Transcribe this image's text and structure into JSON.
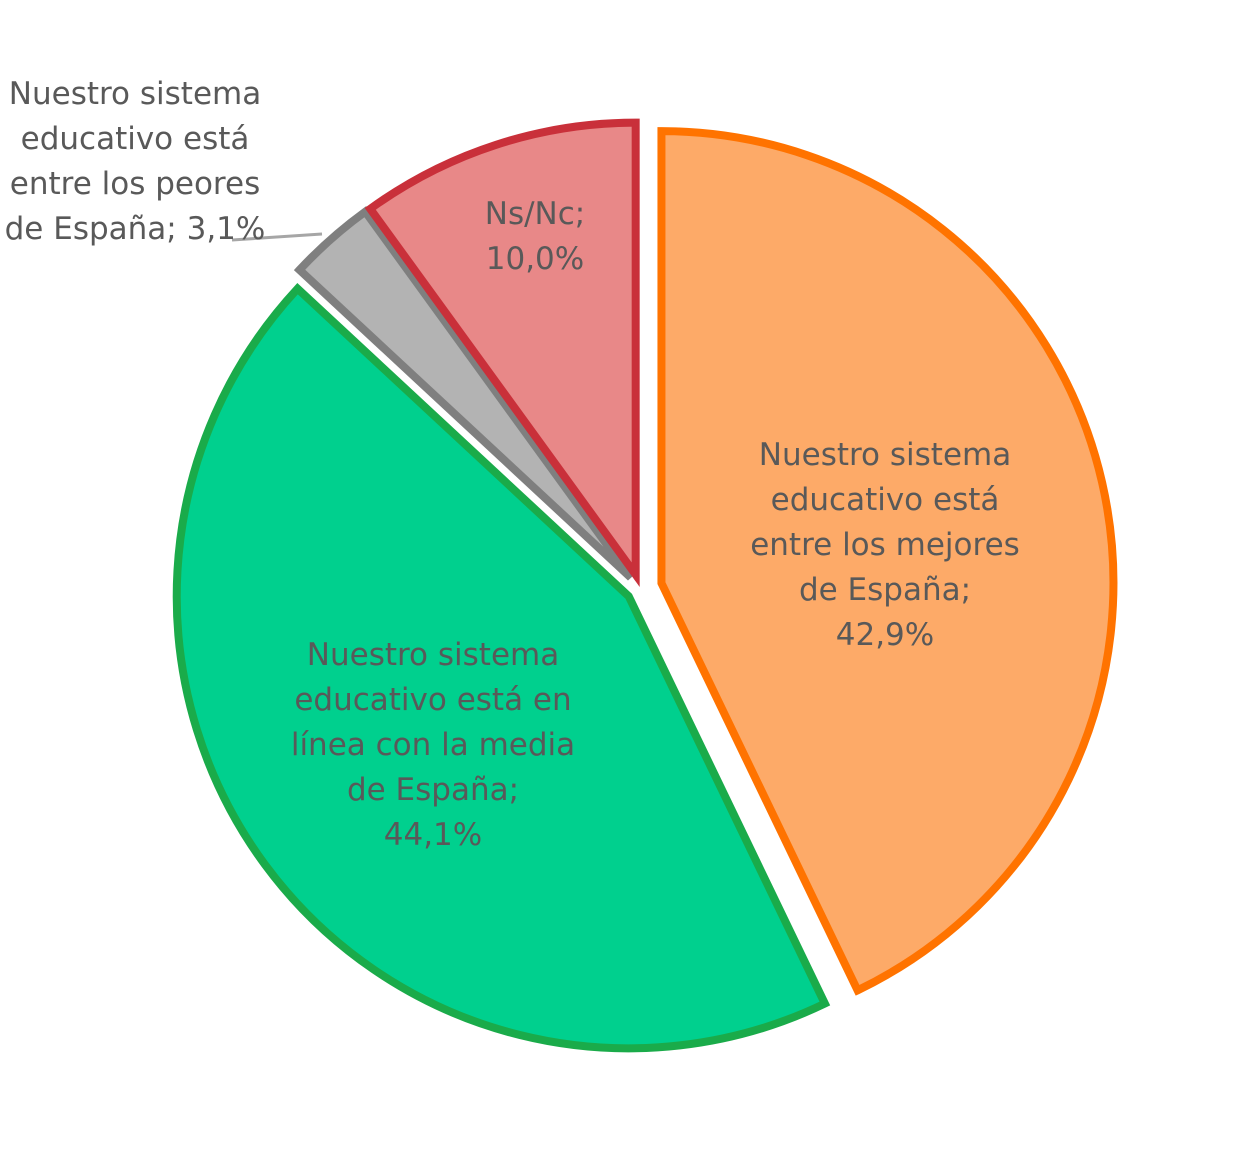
{
  "chart_data": {
    "type": "pie",
    "categories": [
      "Nuestro sistema educativo está entre los mejores de España;",
      "Nuestro sistema educativo está en línea con la media de España;",
      "Nuestro sistema educativo está entre los peores de España;",
      "Ns/Nc;"
    ],
    "values": [
      42.9,
      44.1,
      3.1,
      10.0
    ],
    "value_labels": [
      "42,9%",
      "44,1%",
      "3,1%",
      "10,0%"
    ],
    "colors": [
      "#fdaa68",
      "#00d08e",
      "#b3b3b3",
      "#e88888"
    ],
    "edge_colors": [
      "#ff7300",
      "#1aab4a",
      "#7f7f7f",
      "#c9303a"
    ]
  }
}
